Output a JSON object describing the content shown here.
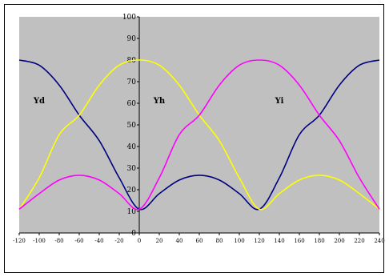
{
  "chart_data": {
    "type": "line",
    "x_range": [
      -120,
      240
    ],
    "ylim": [
      0,
      100
    ],
    "x_ticks": [
      "-120",
      "-100",
      "-80",
      "-60",
      "-40",
      "-20",
      "0",
      "20",
      "40",
      "60",
      "80",
      "100",
      "120",
      "140",
      "160",
      "180",
      "200",
      "220",
      "240"
    ],
    "y_ticks": [
      "0",
      "10",
      "20",
      "30",
      "40",
      "50",
      "60",
      "70",
      "80",
      "90",
      "100"
    ],
    "grid": false,
    "plot_background": "#c0c0c0",
    "series": [
      {
        "name": "Yd",
        "color": "#000080",
        "label_at": [
          -100,
          60
        ],
        "x": [
          -120,
          -100,
          -80,
          -60,
          -40,
          -20,
          0,
          20,
          40,
          60,
          80,
          100,
          120,
          140,
          160,
          180,
          200,
          220,
          240
        ],
        "y": [
          80,
          77.6,
          68.4,
          54.5,
          42.7,
          25.5,
          11,
          18.2,
          24.5,
          26.7,
          24.5,
          18.2,
          11,
          25.5,
          45.5,
          54.5,
          68.4,
          77.6,
          80
        ]
      },
      {
        "name": "Yh",
        "color": "#ffff00",
        "label_at": [
          20,
          60
        ],
        "x": [
          -120,
          -100,
          -80,
          -60,
          -40,
          -20,
          0,
          20,
          40,
          60,
          80,
          100,
          120,
          140,
          160,
          180,
          200,
          220,
          240
        ],
        "y": [
          11,
          25.5,
          45.5,
          54.5,
          68.4,
          77.6,
          80,
          77.6,
          68.4,
          54.5,
          42.7,
          25.5,
          11,
          18.2,
          24.5,
          26.7,
          24.5,
          18.2,
          11
        ]
      },
      {
        "name": "Yi",
        "color": "#ff00ff",
        "label_at": [
          140,
          60
        ],
        "x": [
          -120,
          -100,
          -80,
          -60,
          -40,
          -20,
          0,
          20,
          40,
          60,
          80,
          100,
          120,
          140,
          160,
          180,
          200,
          220,
          240
        ],
        "y": [
          11,
          18.2,
          24.5,
          26.7,
          24.5,
          18.2,
          11,
          25.5,
          45.5,
          54.5,
          68.4,
          77.6,
          80,
          77.6,
          68.4,
          54.5,
          42.7,
          25.5,
          11
        ]
      }
    ]
  }
}
